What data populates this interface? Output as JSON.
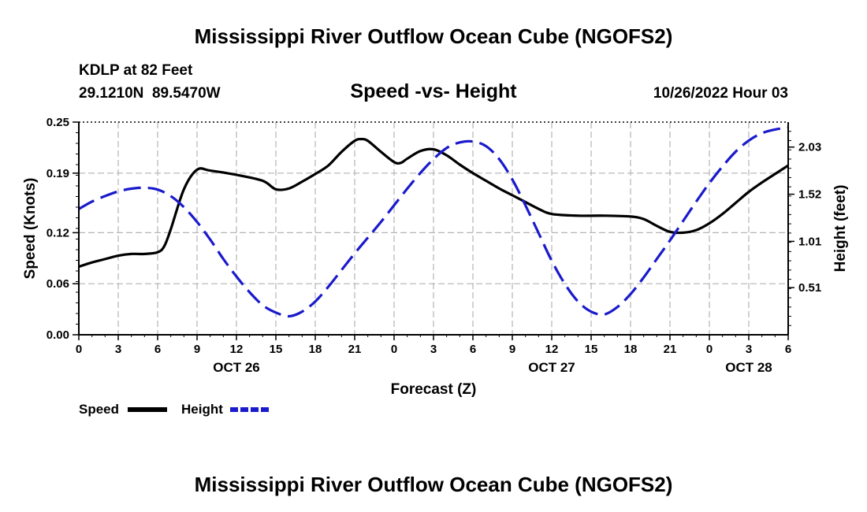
{
  "page": {
    "title": "Mississippi River Outflow Ocean Cube (NGOFS2)",
    "footer_title": "Mississippi River Outflow Ocean Cube (NGOFS2)"
  },
  "colors": {
    "speed": "#000000",
    "height": "#1a1acc",
    "grid": "#b4b4b4"
  },
  "chart_data": {
    "type": "line",
    "station": "KDLP at 82 Feet",
    "coords": "29.1210N  89.5470W",
    "title": "Speed -vs- Height",
    "timestamp": "10/26/2022 Hour 03",
    "xlabel": "Forecast (Z)",
    "ylabel_left": "Speed (Knots)",
    "ylabel_right": "Height (feet)",
    "x_hours_range": [
      0,
      54
    ],
    "x_ticks": [
      0,
      3,
      6,
      9,
      12,
      15,
      18,
      21,
      24,
      27,
      30,
      33,
      36,
      39,
      42,
      45,
      48,
      51,
      54
    ],
    "x_tick_labels": [
      "0",
      "3",
      "6",
      "9",
      "12",
      "15",
      "18",
      "21",
      "0",
      "3",
      "6",
      "9",
      "12",
      "15",
      "18",
      "21",
      "0",
      "3",
      "6"
    ],
    "date_labels": [
      {
        "hour": 12,
        "label": "OCT 26"
      },
      {
        "hour": 36,
        "label": "OCT 27"
      },
      {
        "hour": 51,
        "label": "OCT 28"
      }
    ],
    "y_left": {
      "range": [
        0,
        0.25
      ],
      "ticks": [
        0.0,
        0.06,
        0.12,
        0.19,
        0.25
      ],
      "tick_labels": [
        "0.00",
        "0.06",
        "0.12",
        "0.19",
        "0.25"
      ]
    },
    "y_right": {
      "range": [
        0,
        2.3
      ],
      "ticks": [
        0.51,
        1.01,
        1.52,
        2.03
      ],
      "tick_labels": [
        "0.51",
        "1.01",
        "1.52",
        "2.03"
      ]
    },
    "legend": {
      "placement": "bottom-left",
      "entries": [
        "Speed",
        "Height"
      ]
    },
    "series": [
      {
        "name": "Speed",
        "axis": "left",
        "style": "solid",
        "x": [
          0,
          1,
          2,
          3,
          4,
          5,
          6,
          6.5,
          7,
          8,
          9,
          10,
          12,
          14,
          15,
          16,
          17,
          18,
          19,
          20,
          21,
          21.5,
          22,
          23,
          24,
          24.5,
          25,
          26,
          27,
          28,
          29,
          30,
          31,
          32,
          33,
          34,
          35,
          36,
          38,
          40,
          42,
          43,
          44,
          45,
          46,
          47,
          48,
          49,
          50,
          51,
          52,
          53,
          54
        ],
        "values": [
          0.08,
          0.085,
          0.089,
          0.093,
          0.095,
          0.095,
          0.097,
          0.104,
          0.124,
          0.171,
          0.194,
          0.193,
          0.188,
          0.181,
          0.171,
          0.172,
          0.18,
          0.189,
          0.199,
          0.215,
          0.228,
          0.23,
          0.228,
          0.215,
          0.203,
          0.202,
          0.207,
          0.216,
          0.218,
          0.211,
          0.2,
          0.19,
          0.181,
          0.172,
          0.164,
          0.156,
          0.148,
          0.142,
          0.14,
          0.14,
          0.139,
          0.136,
          0.128,
          0.121,
          0.12,
          0.123,
          0.131,
          0.142,
          0.155,
          0.168,
          0.179,
          0.189,
          0.199
        ]
      },
      {
        "name": "Height",
        "axis": "right",
        "style": "dashed",
        "x": [
          0,
          1,
          2,
          3,
          4,
          5,
          6,
          7,
          8,
          9,
          10,
          11,
          12,
          13,
          14,
          15,
          16,
          17,
          18,
          19,
          20,
          21,
          22,
          23,
          24,
          25,
          26,
          27,
          28,
          29,
          30,
          31,
          32,
          33,
          34,
          35,
          36,
          37,
          38,
          39,
          40,
          41,
          42,
          43,
          44,
          45,
          46,
          47,
          48,
          49,
          50,
          51,
          52,
          53,
          54
        ],
        "values": [
          1.36,
          1.44,
          1.5,
          1.55,
          1.58,
          1.59,
          1.57,
          1.5,
          1.38,
          1.22,
          1.03,
          0.82,
          0.63,
          0.46,
          0.32,
          0.24,
          0.2,
          0.25,
          0.36,
          0.52,
          0.7,
          0.88,
          1.05,
          1.22,
          1.4,
          1.58,
          1.75,
          1.9,
          2.02,
          2.08,
          2.09,
          2.04,
          1.9,
          1.68,
          1.4,
          1.1,
          0.8,
          0.55,
          0.36,
          0.25,
          0.22,
          0.3,
          0.44,
          0.62,
          0.82,
          1.02,
          1.23,
          1.44,
          1.64,
          1.82,
          1.98,
          2.1,
          2.18,
          2.22,
          2.24
        ]
      }
    ]
  }
}
